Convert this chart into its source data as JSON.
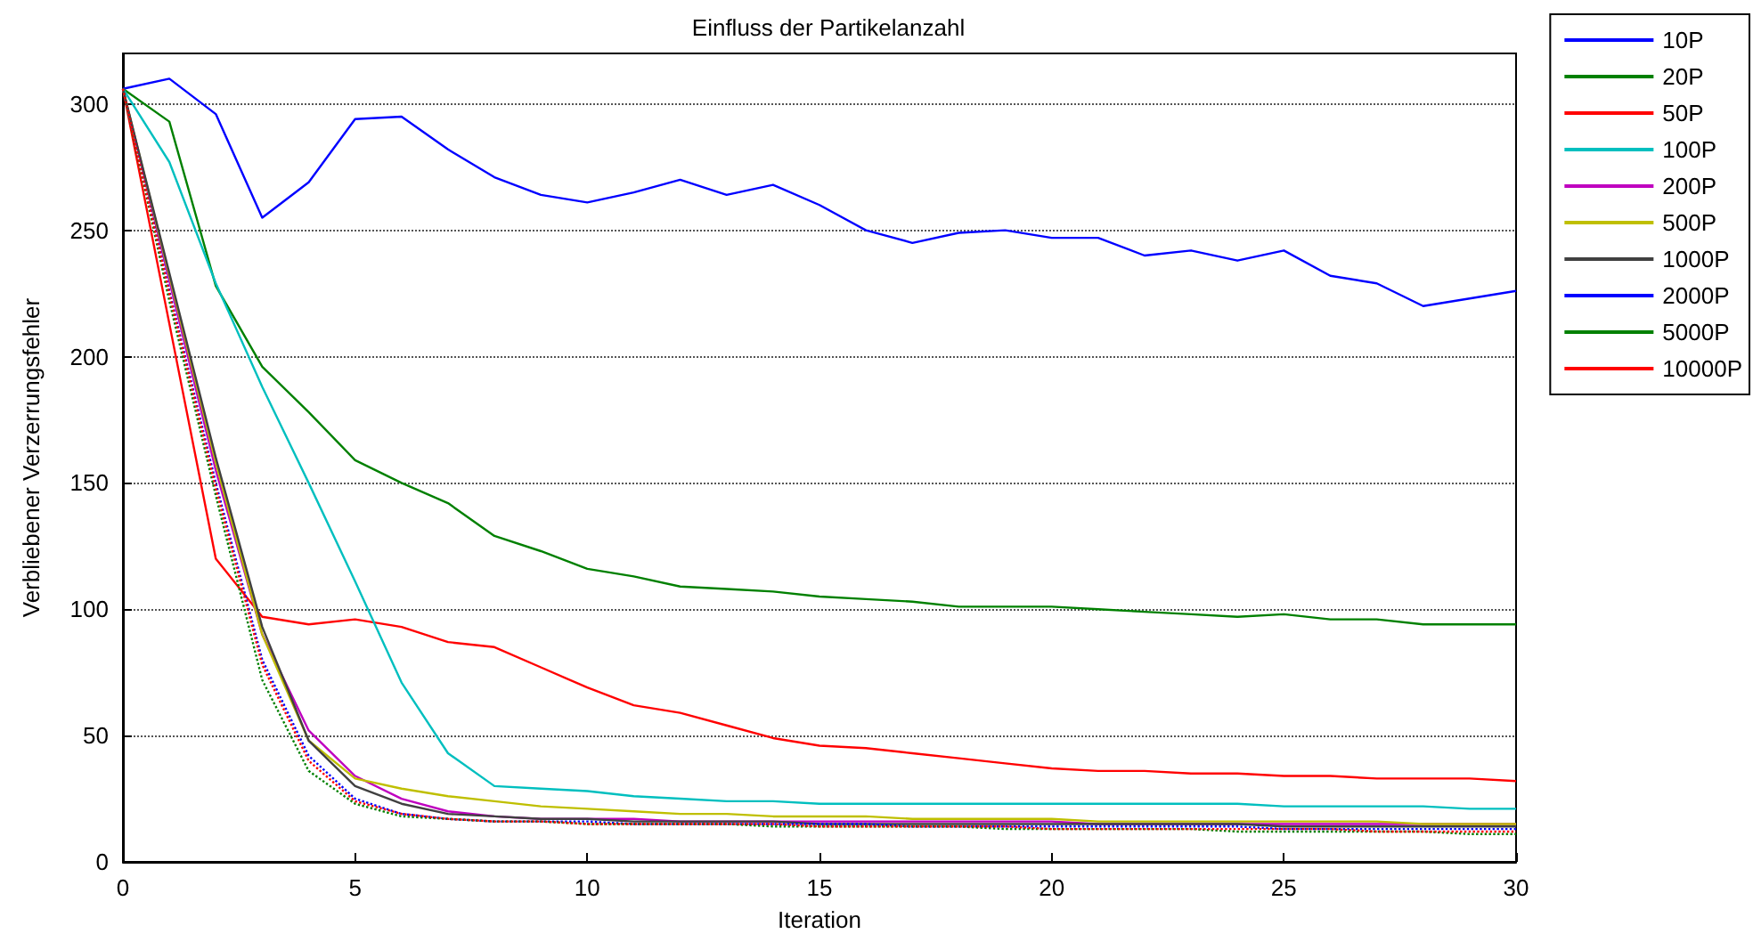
{
  "chart_data": {
    "type": "line",
    "title": "Einfluss der Partikelanzahl",
    "xlabel": "Iteration",
    "ylabel": "Verbliebener Verzerrungsfehler",
    "x": [
      0,
      1,
      2,
      3,
      4,
      5,
      6,
      7,
      8,
      9,
      10,
      11,
      12,
      13,
      14,
      15,
      16,
      17,
      18,
      19,
      20,
      21,
      22,
      23,
      24,
      25,
      26,
      27,
      28,
      29,
      30
    ],
    "xlim": [
      0,
      30
    ],
    "xticks": [
      0,
      5,
      10,
      15,
      20,
      25,
      30
    ],
    "ylim": [
      0,
      320
    ],
    "yticks": [
      0,
      50,
      100,
      150,
      200,
      250,
      300
    ],
    "grid": "y",
    "legend": "top right",
    "marker": "none",
    "series": [
      {
        "name": "10P",
        "color": "#0000ff",
        "values": [
          306,
          310,
          296,
          255,
          269,
          294,
          295,
          282,
          271,
          264,
          261,
          265,
          270,
          264,
          268,
          260,
          250,
          245,
          249,
          250,
          247,
          247,
          240,
          242,
          238,
          242,
          232,
          229,
          220,
          223,
          226
        ]
      },
      {
        "name": "20P",
        "color": "#008000",
        "values": [
          306,
          293,
          228,
          196,
          178,
          159,
          150,
          142,
          129,
          123,
          116,
          113,
          109,
          108,
          107,
          105,
          104,
          103,
          101,
          101,
          101,
          100,
          99,
          98,
          97,
          98,
          96,
          96,
          94,
          94,
          94
        ]
      },
      {
        "name": "50P",
        "color": "#ff0000",
        "values": [
          306,
          213,
          120,
          97,
          94,
          96,
          93,
          87,
          85,
          77,
          69,
          62,
          59,
          54,
          49,
          46,
          45,
          43,
          41,
          39,
          37,
          36,
          36,
          35,
          35,
          34,
          34,
          33,
          33,
          33,
          32
        ]
      },
      {
        "name": "100P",
        "color": "#00bfbf",
        "values": [
          306,
          277,
          229,
          188,
          150,
          111,
          71,
          43,
          30,
          29,
          28,
          26,
          25,
          24,
          24,
          23,
          23,
          23,
          23,
          23,
          23,
          23,
          23,
          23,
          23,
          22,
          22,
          22,
          22,
          21,
          21
        ]
      },
      {
        "name": "200P",
        "color": "#bf00bf",
        "values": [
          306,
          230,
          155,
          90,
          52,
          34,
          25,
          20,
          18,
          17,
          17,
          17,
          16,
          16,
          16,
          16,
          16,
          16,
          16,
          16,
          16,
          15,
          15,
          15,
          15,
          15,
          15,
          15,
          15,
          15,
          15
        ]
      },
      {
        "name": "500P",
        "color": "#bfbf00",
        "values": [
          306,
          232,
          158,
          90,
          48,
          33,
          29,
          26,
          24,
          22,
          21,
          20,
          19,
          19,
          18,
          18,
          18,
          17,
          17,
          17,
          17,
          16,
          16,
          16,
          16,
          16,
          16,
          16,
          15,
          15,
          15
        ]
      },
      {
        "name": "1000P",
        "color": "#404040",
        "values": [
          306,
          233,
          160,
          93,
          48,
          30,
          23,
          19,
          18,
          17,
          17,
          16,
          16,
          16,
          16,
          15,
          15,
          15,
          15,
          15,
          15,
          15,
          15,
          15,
          15,
          14,
          14,
          14,
          14,
          14,
          14
        ]
      },
      {
        "name": "2000P",
        "color": "#0000ff",
        "line_style": "dotted",
        "values": [
          306,
          226,
          150,
          80,
          42,
          25,
          19,
          17,
          16,
          16,
          16,
          15,
          15,
          15,
          15,
          15,
          15,
          14,
          14,
          14,
          14,
          14,
          14,
          14,
          14,
          13,
          13,
          13,
          13,
          13,
          13
        ]
      },
      {
        "name": "5000P",
        "color": "#008000",
        "line_style": "dotted",
        "values": [
          306,
          222,
          145,
          72,
          36,
          23,
          18,
          17,
          16,
          16,
          15,
          15,
          15,
          15,
          14,
          14,
          14,
          14,
          14,
          13,
          13,
          13,
          13,
          13,
          12,
          12,
          12,
          12,
          12,
          11,
          11
        ]
      },
      {
        "name": "10000P",
        "color": "#ff0000",
        "line_style": "dotted",
        "values": [
          306,
          225,
          148,
          78,
          40,
          24,
          19,
          17,
          16,
          16,
          15,
          15,
          15,
          15,
          15,
          14,
          14,
          14,
          14,
          14,
          13,
          13,
          13,
          13,
          13,
          13,
          13,
          12,
          12,
          12,
          12
        ]
      }
    ]
  }
}
